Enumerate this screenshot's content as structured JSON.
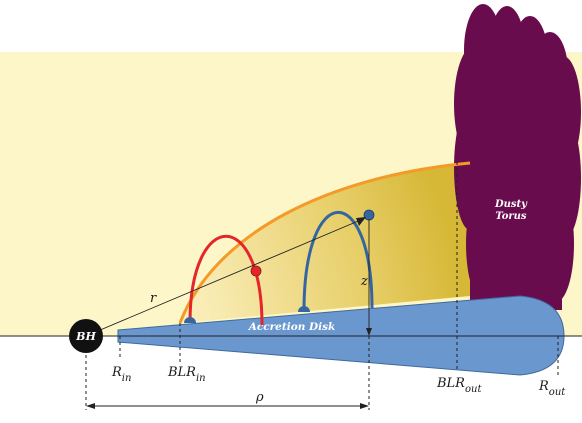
{
  "labels": {
    "bh": "BH",
    "r": "r",
    "z": "z",
    "rho": "ρ",
    "accretion_disk": "Accretion Disk",
    "dusty_torus_line1": "Dusty",
    "dusty_torus_line2": "Torus",
    "r_in_main": "R",
    "r_in_sub": "in",
    "blr_in_main": "BLR",
    "blr_in_sub": "in",
    "blr_out_main": "BLR",
    "blr_out_sub": "out",
    "r_out_main": "R",
    "r_out_sub": "out"
  },
  "colors": {
    "background_glow": "#fdf6c8",
    "blr_region_outer": "#f8eab0",
    "blr_region_inner": "#d4b42e",
    "blr_boundary": "#f39a28",
    "red_orbit": "#e4262b",
    "blue_orbit": "#3566a0",
    "disk_fill": "#6b97cf",
    "disk_stroke": "#3e6a9e",
    "torus": "#690c4d",
    "black_hole": "#111111"
  },
  "icons": {
    "black_hole": "filled-black-circle",
    "red_cloud": "red-dot",
    "blue_cloud": "blue-dot"
  }
}
